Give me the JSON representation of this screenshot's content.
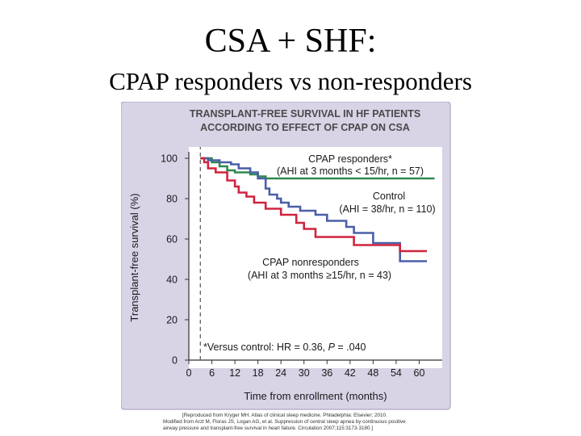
{
  "slide": {
    "title": "CSA + SHF:",
    "subtitle": "CPAP responders vs non-responders"
  },
  "colors": {
    "panel": "#d9d3e6",
    "panel_border": "#b9b0cc",
    "plot_bg": "#ffffff",
    "heading": "#4a4a4a",
    "responders": "#2e8a4e",
    "control": "#4a5fa8",
    "nonresponders": "#d0243e",
    "text": "#1a1a1a"
  },
  "chart_data": {
    "type": "line",
    "title": "TRANSPLANT-FREE SURVIVAL IN HF PATIENTS ACCORDING TO EFFECT OF CPAP ON CSA",
    "title_lines": [
      "TRANSPLANT-FREE SURVIVAL IN HF PATIENTS",
      "ACCORDING TO EFFECT OF CPAP ON CSA"
    ],
    "xlabel": "Time from enrollment (months)",
    "ylabel": "Transplant-free survival (%)",
    "xlim": [
      0,
      66
    ],
    "ylim": [
      0,
      100
    ],
    "xticks": [
      0,
      6,
      12,
      18,
      24,
      30,
      36,
      42,
      48,
      54,
      60
    ],
    "yticks": [
      0,
      20,
      40,
      60,
      80,
      100
    ],
    "enrollment_marker_x": 3,
    "series": [
      {
        "key": "responders",
        "name": "CPAP responders*",
        "detail": "(AHI at 3 months < 15/hr, n = 57)",
        "x": [
          3,
          6,
          6,
          8,
          8,
          10,
          10,
          12,
          12,
          16,
          16,
          18,
          18,
          20,
          20,
          64
        ],
        "y": [
          100,
          100,
          98,
          98,
          96,
          96,
          94,
          94,
          93,
          93,
          92,
          92,
          91,
          91,
          90,
          90
        ]
      },
      {
        "key": "control",
        "name": "Control",
        "detail": "(AHI = 38/hr, n = 110)",
        "x": [
          3,
          5,
          5,
          8,
          8,
          11,
          11,
          13,
          13,
          16,
          16,
          18,
          18,
          20,
          20,
          21,
          21,
          23,
          23,
          24,
          24,
          26,
          26,
          29,
          29,
          33,
          33,
          36,
          36,
          41,
          41,
          43,
          43,
          48,
          48,
          55,
          55,
          62
        ],
        "y": [
          100,
          100,
          99,
          99,
          98,
          98,
          97,
          97,
          95,
          95,
          93,
          93,
          90,
          90,
          85,
          85,
          82,
          82,
          80,
          80,
          78,
          78,
          76,
          76,
          74,
          74,
          72,
          72,
          69,
          69,
          66,
          66,
          63,
          63,
          58,
          58,
          49,
          49
        ]
      },
      {
        "key": "nonresponders",
        "name": "CPAP nonresponders",
        "detail": "(AHI at 3 months ≥15/hr, n = 43)",
        "x": [
          3,
          4,
          4,
          5,
          5,
          7,
          7,
          10,
          10,
          12,
          12,
          13,
          13,
          15,
          15,
          17,
          17,
          20,
          20,
          24,
          24,
          28,
          28,
          30,
          30,
          33,
          33,
          43,
          43,
          55,
          55,
          62
        ],
        "y": [
          100,
          100,
          98,
          98,
          95,
          95,
          93,
          93,
          89,
          89,
          86,
          86,
          83,
          83,
          81,
          81,
          78,
          78,
          75,
          75,
          72,
          72,
          68,
          68,
          65,
          65,
          61,
          61,
          57,
          57,
          54,
          54
        ]
      }
    ],
    "annotations": [
      {
        "text": "*Versus control: HR = 0.36, ",
        "italic_part": "P",
        "suffix": " = .040"
      }
    ],
    "credits": [
      "[Reproduced from Kryger MH. Atlas of clinical sleep medicine. Philadelphia: Elsevier; 2010.",
      "Modified from Arzt M, Floras JS, Logan AG, et al. Suppression of central sleep apnea by continuous positive",
      "airway pressure and transplant-free survival in heart failure. Circulation 2007;115:3173-3180.]"
    ]
  }
}
